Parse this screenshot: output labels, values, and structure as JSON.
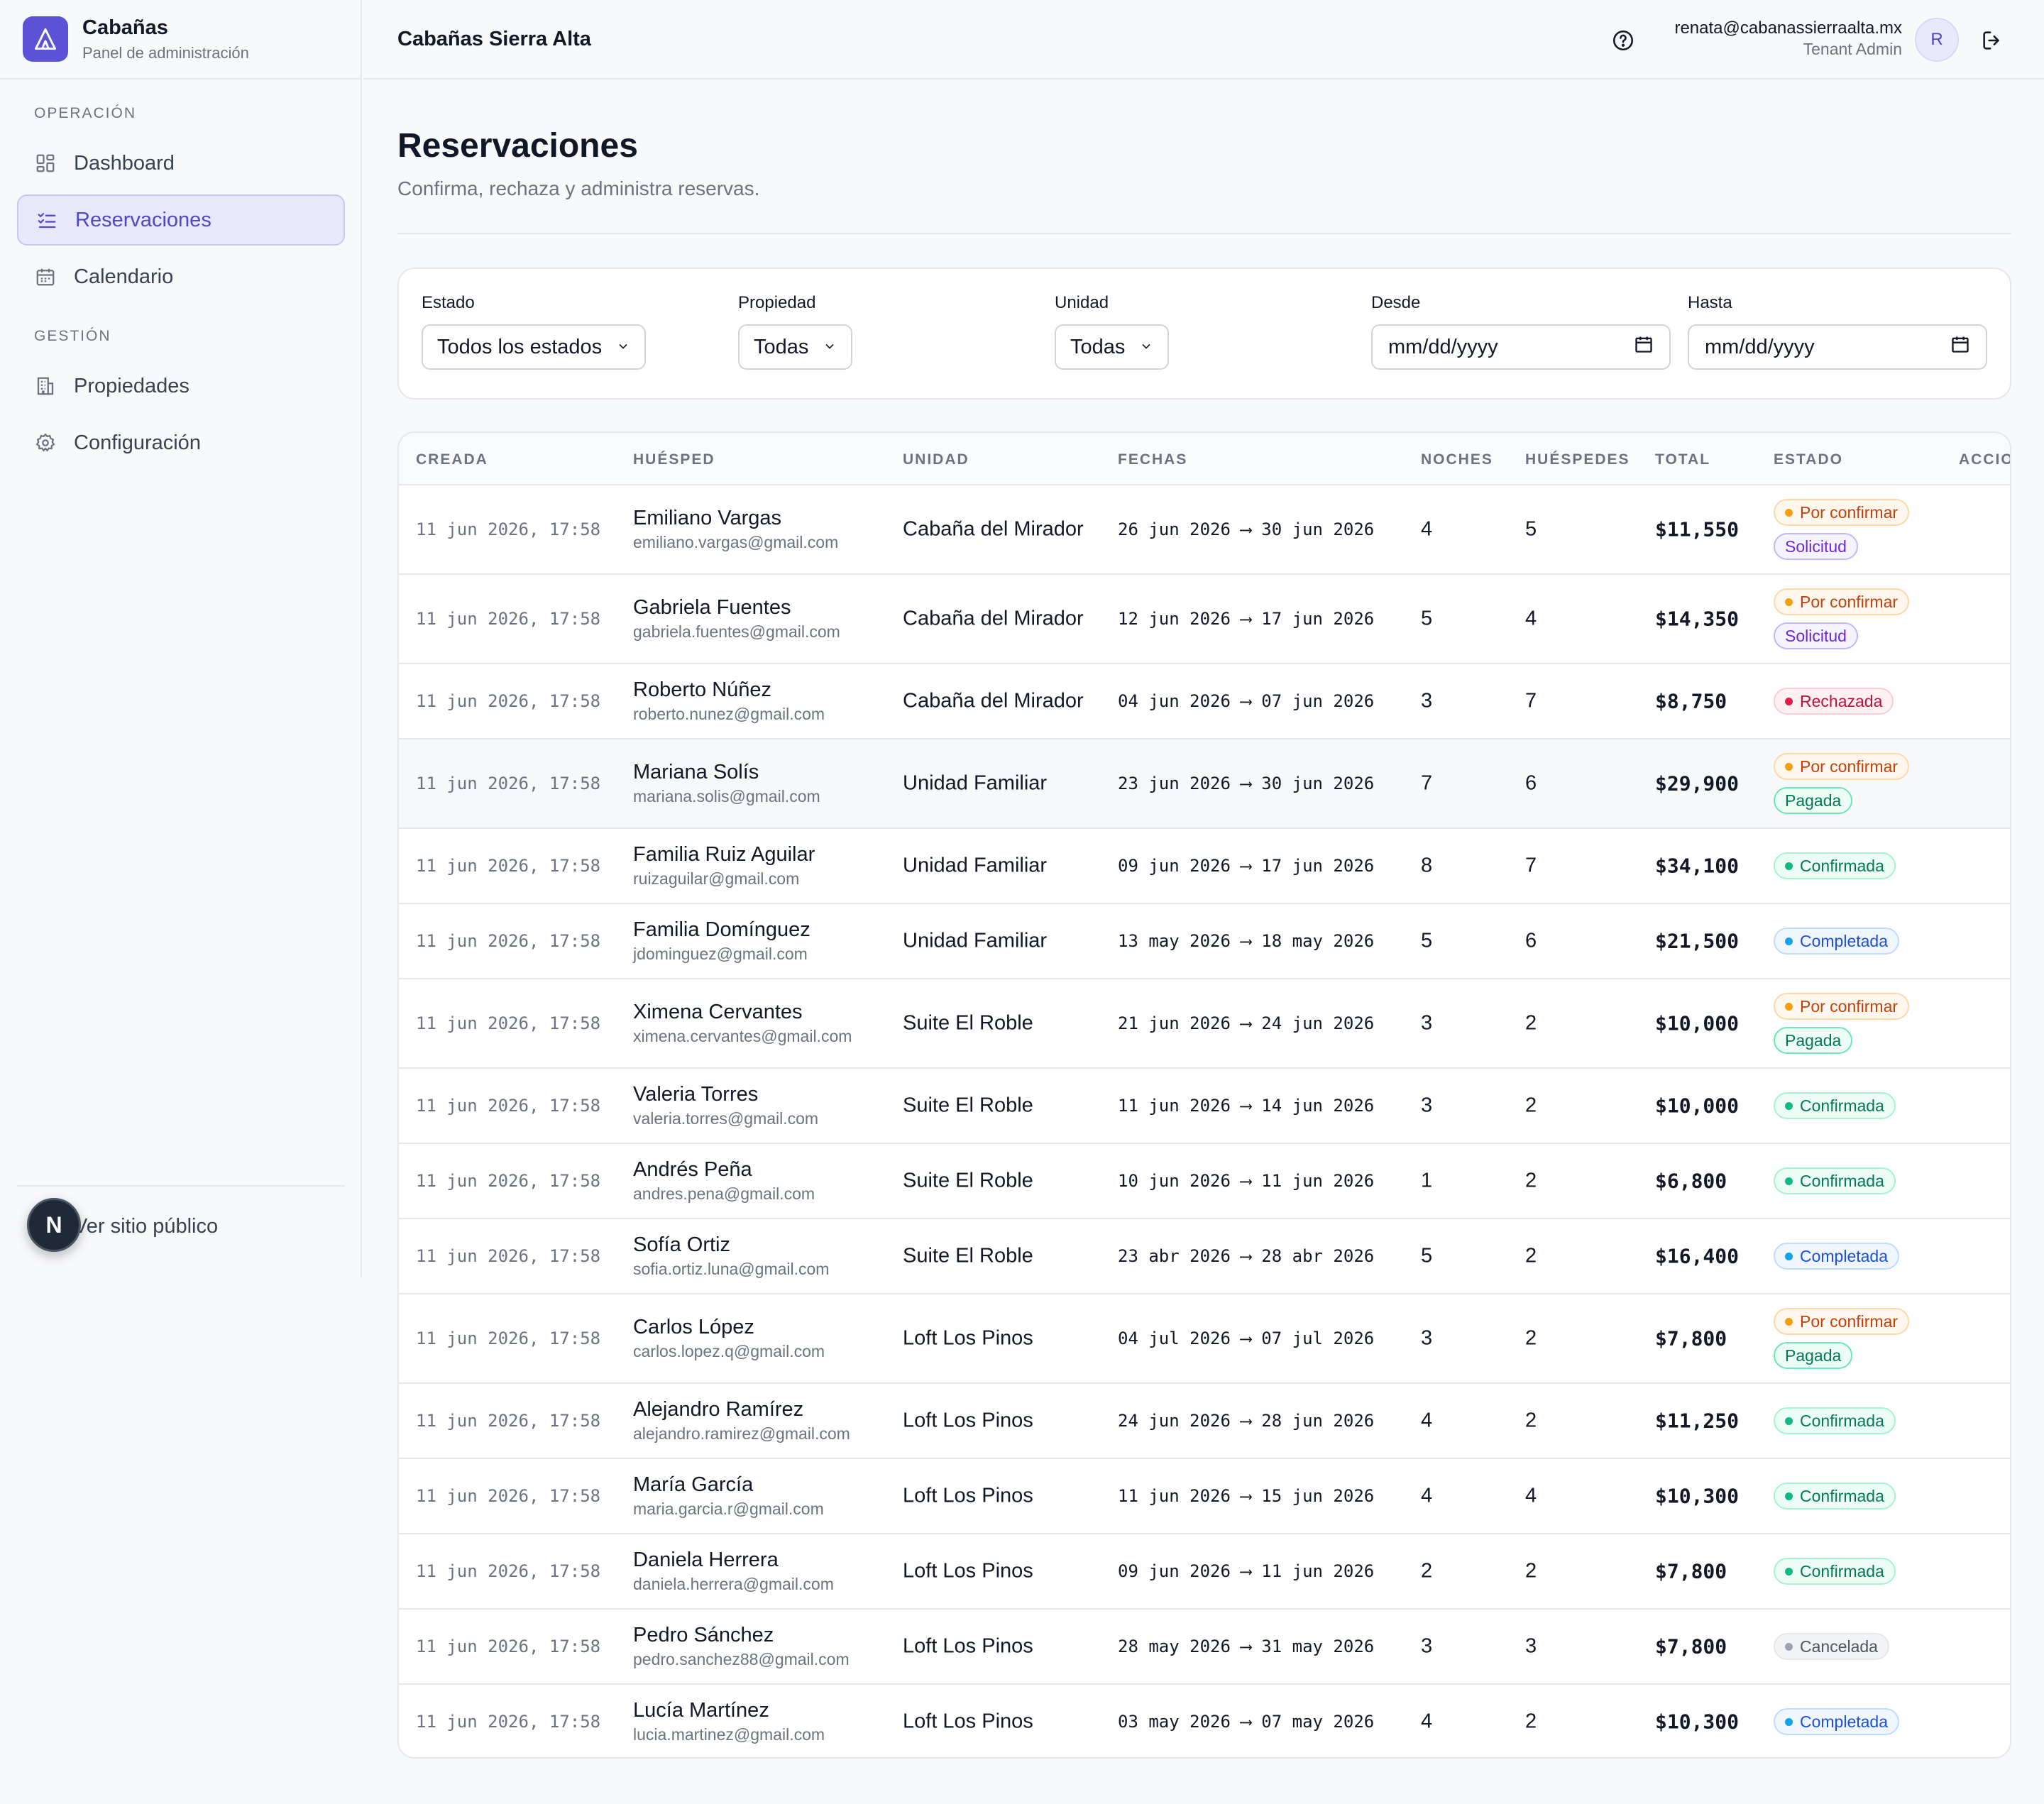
{
  "brand": {
    "title": "Cabañas",
    "subtitle": "Panel de administración"
  },
  "sidebar": {
    "sections": [
      {
        "label": "OPERACIÓN"
      },
      {
        "label": "GESTIÓN"
      }
    ],
    "items": [
      {
        "label": "Dashboard",
        "icon": "dashboard-icon"
      },
      {
        "label": "Reservaciones",
        "icon": "list-check-icon",
        "active": true
      },
      {
        "label": "Calendario",
        "icon": "calendar-icon"
      },
      {
        "label": "Propiedades",
        "icon": "building-icon"
      },
      {
        "label": "Configuración",
        "icon": "gear-icon"
      }
    ],
    "public_link": "Ver sitio público",
    "dev_badge": "N"
  },
  "topbar": {
    "title": "Cabañas Sierra Alta",
    "user_email": "renata@cabanassierraalta.mx",
    "user_role": "Tenant Admin",
    "avatar_initial": "R"
  },
  "page": {
    "title": "Reservaciones",
    "subtitle": "Confirma, rechaza y administra reservas."
  },
  "filters": {
    "estado": {
      "label": "Estado",
      "value": "Todos los estados"
    },
    "propiedad": {
      "label": "Propiedad",
      "value": "Todas"
    },
    "unidad": {
      "label": "Unidad",
      "value": "Todas"
    },
    "desde": {
      "label": "Desde",
      "placeholder": "mm/dd/yyyy"
    },
    "hasta": {
      "label": "Hasta",
      "placeholder": "mm/dd/yyyy"
    }
  },
  "table": {
    "headers": [
      "CREADA",
      "HUÉSPED",
      "UNIDAD",
      "FECHAS",
      "NOCHES",
      "HUÉSPEDES",
      "TOTAL",
      "ESTADO",
      "ACCIO"
    ],
    "rows": [
      {
        "created": "11 jun 2026, 17:58",
        "name": "Emiliano Vargas",
        "email": "emiliano.vargas@gmail.com",
        "unit": "Cabaña del Mirador",
        "dates": "26 jun 2026 ⟶ 30 jun 2026",
        "nights": "4",
        "guests": "5",
        "total": "$11,550",
        "badges": [
          "Por confirmar",
          "Solicitud"
        ]
      },
      {
        "created": "11 jun 2026, 17:58",
        "name": "Gabriela Fuentes",
        "email": "gabriela.fuentes@gmail.com",
        "unit": "Cabaña del Mirador",
        "dates": "12 jun 2026 ⟶ 17 jun 2026",
        "nights": "5",
        "guests": "4",
        "total": "$14,350",
        "badges": [
          "Por confirmar",
          "Solicitud"
        ]
      },
      {
        "created": "11 jun 2026, 17:58",
        "name": "Roberto Núñez",
        "email": "roberto.nunez@gmail.com",
        "unit": "Cabaña del Mirador",
        "dates": "04 jun 2026 ⟶ 07 jun 2026",
        "nights": "3",
        "guests": "7",
        "total": "$8,750",
        "badges": [
          "Rechazada"
        ]
      },
      {
        "created": "11 jun 2026, 17:58",
        "name": "Mariana Solís",
        "email": "mariana.solis@gmail.com",
        "unit": "Unidad Familiar",
        "dates": "23 jun 2026 ⟶ 30 jun 2026",
        "nights": "7",
        "guests": "6",
        "total": "$29,900",
        "badges": [
          "Por confirmar",
          "Pagada"
        ]
      },
      {
        "created": "11 jun 2026, 17:58",
        "name": "Familia Ruiz Aguilar",
        "email": "ruizaguilar@gmail.com",
        "unit": "Unidad Familiar",
        "dates": "09 jun 2026 ⟶ 17 jun 2026",
        "nights": "8",
        "guests": "7",
        "total": "$34,100",
        "badges": [
          "Confirmada"
        ]
      },
      {
        "created": "11 jun 2026, 17:58",
        "name": "Familia Domínguez",
        "email": "jdominguez@gmail.com",
        "unit": "Unidad Familiar",
        "dates": "13 may 2026 ⟶ 18 may 2026",
        "nights": "5",
        "guests": "6",
        "total": "$21,500",
        "badges": [
          "Completada"
        ]
      },
      {
        "created": "11 jun 2026, 17:58",
        "name": "Ximena Cervantes",
        "email": "ximena.cervantes@gmail.com",
        "unit": "Suite El Roble",
        "dates": "21 jun 2026 ⟶ 24 jun 2026",
        "nights": "3",
        "guests": "2",
        "total": "$10,000",
        "badges": [
          "Por confirmar",
          "Pagada"
        ]
      },
      {
        "created": "11 jun 2026, 17:58",
        "name": "Valeria Torres",
        "email": "valeria.torres@gmail.com",
        "unit": "Suite El Roble",
        "dates": "11 jun 2026 ⟶ 14 jun 2026",
        "nights": "3",
        "guests": "2",
        "total": "$10,000",
        "badges": [
          "Confirmada"
        ]
      },
      {
        "created": "11 jun 2026, 17:58",
        "name": "Andrés Peña",
        "email": "andres.pena@gmail.com",
        "unit": "Suite El Roble",
        "dates": "10 jun 2026 ⟶ 11 jun 2026",
        "nights": "1",
        "guests": "2",
        "total": "$6,800",
        "badges": [
          "Confirmada"
        ]
      },
      {
        "created": "11 jun 2026, 17:58",
        "name": "Sofía Ortiz",
        "email": "sofia.ortiz.luna@gmail.com",
        "unit": "Suite El Roble",
        "dates": "23 abr 2026 ⟶ 28 abr 2026",
        "nights": "5",
        "guests": "2",
        "total": "$16,400",
        "badges": [
          "Completada"
        ]
      },
      {
        "created": "11 jun 2026, 17:58",
        "name": "Carlos López",
        "email": "carlos.lopez.q@gmail.com",
        "unit": "Loft Los Pinos",
        "dates": "04 jul 2026 ⟶ 07 jul 2026",
        "nights": "3",
        "guests": "2",
        "total": "$7,800",
        "badges": [
          "Por confirmar",
          "Pagada"
        ]
      },
      {
        "created": "11 jun 2026, 17:58",
        "name": "Alejandro Ramírez",
        "email": "alejandro.ramirez@gmail.com",
        "unit": "Loft Los Pinos",
        "dates": "24 jun 2026 ⟶ 28 jun 2026",
        "nights": "4",
        "guests": "2",
        "total": "$11,250",
        "badges": [
          "Confirmada"
        ]
      },
      {
        "created": "11 jun 2026, 17:58",
        "name": "María García",
        "email": "maria.garcia.r@gmail.com",
        "unit": "Loft Los Pinos",
        "dates": "11 jun 2026 ⟶ 15 jun 2026",
        "nights": "4",
        "guests": "4",
        "total": "$10,300",
        "badges": [
          "Confirmada"
        ]
      },
      {
        "created": "11 jun 2026, 17:58",
        "name": "Daniela Herrera",
        "email": "daniela.herrera@gmail.com",
        "unit": "Loft Los Pinos",
        "dates": "09 jun 2026 ⟶ 11 jun 2026",
        "nights": "2",
        "guests": "2",
        "total": "$7,800",
        "badges": [
          "Confirmada"
        ]
      },
      {
        "created": "11 jun 2026, 17:58",
        "name": "Pedro Sánchez",
        "email": "pedro.sanchez88@gmail.com",
        "unit": "Loft Los Pinos",
        "dates": "28 may 2026 ⟶ 31 may 2026",
        "nights": "3",
        "guests": "3",
        "total": "$7,800",
        "badges": [
          "Cancelada"
        ]
      },
      {
        "created": "11 jun 2026, 17:58",
        "name": "Lucía Martínez",
        "email": "lucia.martinez@gmail.com",
        "unit": "Loft Los Pinos",
        "dates": "03 may 2026 ⟶ 07 may 2026",
        "nights": "4",
        "guests": "2",
        "total": "$10,300",
        "badges": [
          "Completada"
        ]
      }
    ]
  },
  "badge_styles": {
    "Por confirmar": {
      "color": "#c2410c",
      "bg": "#fff7ed",
      "border": "#fed7aa",
      "dot": "#f59e0b"
    },
    "Solicitud": {
      "color": "#6d28d9",
      "bg": "#f5f3ff",
      "border": "#c4b5fd"
    },
    "Rechazada": {
      "color": "#be123c",
      "bg": "#fff1f2",
      "border": "#fecdd3",
      "dot": "#e11d48"
    },
    "Pagada": {
      "color": "#047857",
      "bg": "#ecfdf5",
      "border": "#6ee7b7"
    },
    "Confirmada": {
      "color": "#047857",
      "bg": "#ecfdf5",
      "border": "#a7f3d0",
      "dot": "#10b981"
    },
    "Completada": {
      "color": "#1d4ed8",
      "bg": "#eff6ff",
      "border": "#bfdbfe",
      "dot": "#0ea5e9"
    },
    "Cancelada": {
      "color": "#4b5563",
      "bg": "#f3f4f6",
      "border": "#e5e7eb",
      "dot": "#9ca3af"
    }
  }
}
